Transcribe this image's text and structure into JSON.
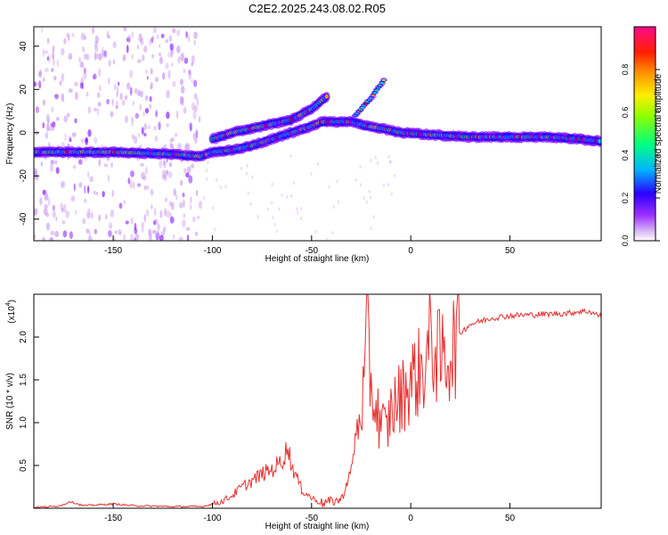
{
  "title": "C2E2.2025.243.08.02.R05",
  "colors": {
    "axis": "#000000",
    "snr_line": "#e83030"
  },
  "chart_data": [
    {
      "type": "heatmap",
      "title": "C2E2.2025.243.08.02.R05",
      "xlabel": "Height of straight line (km)",
      "ylabel": "Frequency (Hz)",
      "xlim": [
        -190,
        96
      ],
      "ylim": [
        -50,
        49
      ],
      "xticks": [
        -150,
        -100,
        -50,
        0,
        50
      ],
      "xtick_labels": [
        "-150",
        "-100",
        "-50",
        "0",
        "50"
      ],
      "yticks": [
        -40,
        -20,
        0,
        20,
        40
      ],
      "ytick_labels": [
        "-40",
        "-20",
        "0",
        "20",
        "40"
      ],
      "colorbar": {
        "label": "Normalized spectral amplitude",
        "range": [
          0,
          1
        ],
        "ticks": [
          0.0,
          0.2,
          0.4,
          0.6,
          0.8
        ],
        "tick_labels": [
          "0.0",
          "0.2",
          "0.4",
          "0.6",
          "0.8"
        ],
        "colormap": [
          "#c896f0",
          "#7800ff",
          "#0000ff",
          "#00c8ff",
          "#00ff64",
          "#a0ff00",
          "#ffff00",
          "#ff8c00",
          "#ff0000",
          "#ff0096"
        ]
      },
      "ridges": [
        {
          "name": "main-trace",
          "points": [
            [
              -190,
              -9
            ],
            [
              -150,
              -9
            ],
            [
              -120,
              -10
            ],
            [
              -106,
              -11
            ],
            [
              -100,
              -9
            ],
            [
              -90,
              -8
            ],
            [
              -80,
              -6
            ],
            [
              -70,
              -3
            ],
            [
              -60,
              0
            ],
            [
              -50,
              3
            ],
            [
              -45,
              5
            ],
            [
              -40,
              5
            ],
            [
              -30,
              5
            ],
            [
              -22,
              3
            ],
            [
              -15,
              2
            ],
            [
              -5,
              0
            ],
            [
              10,
              -1
            ],
            [
              30,
              -2
            ],
            [
              50,
              -2
            ],
            [
              70,
              -2
            ],
            [
              85,
              -3
            ],
            [
              96,
              -4
            ]
          ]
        },
        {
          "name": "upper-branch",
          "points": [
            [
              -100,
              -3
            ],
            [
              -90,
              0
            ],
            [
              -75,
              3
            ],
            [
              -60,
              6
            ],
            [
              -50,
              11
            ],
            [
              -42,
              17
            ]
          ]
        },
        {
          "name": "faint-streak",
          "points": [
            [
              -28,
              8
            ],
            [
              -20,
              16
            ],
            [
              -13,
              25
            ]
          ]
        }
      ]
    },
    {
      "type": "line",
      "xlabel": "Height of straight line (km)",
      "ylabel": "SNR (10 * v/v)",
      "yscale_label": "(x10",
      "yscale_exponent": "4",
      "yscale_suffix": ")",
      "xlim": [
        -190,
        96
      ],
      "ylim": [
        0,
        2.5
      ],
      "xticks": [
        -150,
        -100,
        -50,
        0,
        50
      ],
      "xtick_labels": [
        "-150",
        "-100",
        "-50",
        "0",
        "50"
      ],
      "yticks": [
        0.5,
        1.0,
        1.5,
        2.0
      ],
      "ytick_labels": [
        "0.5",
        "1.0",
        "1.5",
        "2.0"
      ],
      "series": [
        {
          "name": "SNR",
          "x": [
            -190,
            -180,
            -175,
            -172,
            -165,
            -150,
            -140,
            -120,
            -105,
            -100,
            -95,
            -90,
            -85,
            -80,
            -75,
            -70,
            -65,
            -62,
            -60,
            -55,
            -50,
            -45,
            -40,
            -35,
            -30,
            -27,
            -24,
            -22,
            -20,
            -18,
            -15,
            -12,
            -10,
            -5,
            0,
            5,
            8,
            10,
            15,
            20,
            25,
            30,
            40,
            50,
            60,
            70,
            80,
            85,
            90,
            96
          ],
          "y": [
            0.01,
            0.02,
            0.04,
            0.08,
            0.03,
            0.05,
            0.03,
            0.02,
            0.02,
            0.05,
            0.08,
            0.15,
            0.25,
            0.32,
            0.4,
            0.45,
            0.55,
            0.72,
            0.5,
            0.22,
            0.12,
            0.06,
            0.08,
            0.1,
            0.45,
            0.9,
            1.3,
            2.0,
            1.45,
            1.2,
            1.0,
            0.9,
            1.15,
            1.3,
            1.5,
            1.6,
            1.72,
            2.0,
            1.7,
            1.85,
            2.05,
            2.15,
            2.22,
            2.25,
            2.26,
            2.27,
            2.28,
            2.3,
            2.3,
            2.24
          ]
        }
      ]
    }
  ]
}
